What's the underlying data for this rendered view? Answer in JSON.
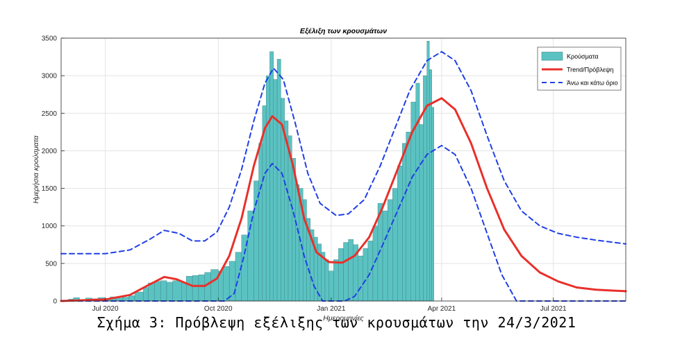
{
  "caption": "Σχήμα 3: Πρόβλεψη εξέλιξης των κρουσμάτων την 24/3/2021",
  "chart_data": {
    "type": "bar+line",
    "title": "Εξέλιξη των κρουσμάτων",
    "xlabel": "Ημερομηνίες",
    "ylabel": "Ημερήσια κρούσματα",
    "ylim": [
      0,
      3500
    ],
    "yticks": [
      0,
      500,
      1000,
      1500,
      2000,
      2500,
      3000,
      3500
    ],
    "xlim": [
      "2020-05-26",
      "2021-08-29"
    ],
    "xticks": [
      {
        "date": "2020-07-01",
        "label": "Jul 2020"
      },
      {
        "date": "2020-10-01",
        "label": "Oct 2020"
      },
      {
        "date": "2021-01-01",
        "label": "Jan 2021"
      },
      {
        "date": "2021-04-01",
        "label": "Apr 2021"
      },
      {
        "date": "2021-07-01",
        "label": "Jul 2021"
      }
    ],
    "grid": true,
    "legend_position": "top-right",
    "colors": {
      "bars": "#5bc2c2",
      "trend": "#e8302a",
      "bounds": "#1f3fe6"
    },
    "series": [
      {
        "name": "Κρούσματα",
        "kind": "bar",
        "points": [
          {
            "x": "2020-05-26",
            "y": 10
          },
          {
            "x": "2020-06-01",
            "y": 25
          },
          {
            "x": "2020-06-05",
            "y": 45
          },
          {
            "x": "2020-06-10",
            "y": 20
          },
          {
            "x": "2020-06-15",
            "y": 40
          },
          {
            "x": "2020-06-20",
            "y": 30
          },
          {
            "x": "2020-06-25",
            "y": 45
          },
          {
            "x": "2020-07-01",
            "y": 30
          },
          {
            "x": "2020-07-05",
            "y": 55
          },
          {
            "x": "2020-07-10",
            "y": 40
          },
          {
            "x": "2020-07-15",
            "y": 50
          },
          {
            "x": "2020-07-20",
            "y": 70
          },
          {
            "x": "2020-07-25",
            "y": 120
          },
          {
            "x": "2020-08-01",
            "y": 180
          },
          {
            "x": "2020-08-05",
            "y": 240
          },
          {
            "x": "2020-08-10",
            "y": 260
          },
          {
            "x": "2020-08-15",
            "y": 270
          },
          {
            "x": "2020-08-20",
            "y": 250
          },
          {
            "x": "2020-08-25",
            "y": 270
          },
          {
            "x": "2020-09-01",
            "y": 240
          },
          {
            "x": "2020-09-05",
            "y": 330
          },
          {
            "x": "2020-09-10",
            "y": 340
          },
          {
            "x": "2020-09-15",
            "y": 350
          },
          {
            "x": "2020-09-20",
            "y": 380
          },
          {
            "x": "2020-09-25",
            "y": 420
          },
          {
            "x": "2020-10-01",
            "y": 400
          },
          {
            "x": "2020-10-05",
            "y": 460
          },
          {
            "x": "2020-10-10",
            "y": 530
          },
          {
            "x": "2020-10-15",
            "y": 650
          },
          {
            "x": "2020-10-20",
            "y": 880
          },
          {
            "x": "2020-10-25",
            "y": 1200
          },
          {
            "x": "2020-10-30",
            "y": 1600
          },
          {
            "x": "2020-11-03",
            "y": 2100
          },
          {
            "x": "2020-11-06",
            "y": 2600
          },
          {
            "x": "2020-11-09",
            "y": 3000
          },
          {
            "x": "2020-11-12",
            "y": 3320
          },
          {
            "x": "2020-11-15",
            "y": 2950
          },
          {
            "x": "2020-11-18",
            "y": 3220
          },
          {
            "x": "2020-11-21",
            "y": 2700
          },
          {
            "x": "2020-11-24",
            "y": 2400
          },
          {
            "x": "2020-11-27",
            "y": 2200
          },
          {
            "x": "2020-11-30",
            "y": 1900
          },
          {
            "x": "2020-12-03",
            "y": 1550
          },
          {
            "x": "2020-12-06",
            "y": 1500
          },
          {
            "x": "2020-12-09",
            "y": 1350
          },
          {
            "x": "2020-12-12",
            "y": 1100
          },
          {
            "x": "2020-12-15",
            "y": 950
          },
          {
            "x": "2020-12-18",
            "y": 850
          },
          {
            "x": "2020-12-21",
            "y": 760
          },
          {
            "x": "2020-12-24",
            "y": 650
          },
          {
            "x": "2020-12-27",
            "y": 550
          },
          {
            "x": "2020-12-30",
            "y": 400
          },
          {
            "x": "2021-01-03",
            "y": 550
          },
          {
            "x": "2021-01-07",
            "y": 700
          },
          {
            "x": "2021-01-11",
            "y": 780
          },
          {
            "x": "2021-01-15",
            "y": 820
          },
          {
            "x": "2021-01-19",
            "y": 750
          },
          {
            "x": "2021-01-23",
            "y": 600
          },
          {
            "x": "2021-01-27",
            "y": 700
          },
          {
            "x": "2021-01-31",
            "y": 800
          },
          {
            "x": "2021-02-04",
            "y": 1000
          },
          {
            "x": "2021-02-08",
            "y": 1300
          },
          {
            "x": "2021-02-12",
            "y": 1200
          },
          {
            "x": "2021-02-16",
            "y": 1350
          },
          {
            "x": "2021-02-20",
            "y": 1500
          },
          {
            "x": "2021-02-24",
            "y": 1800
          },
          {
            "x": "2021-02-28",
            "y": 2100
          },
          {
            "x": "2021-03-03",
            "y": 2250
          },
          {
            "x": "2021-03-07",
            "y": 2650
          },
          {
            "x": "2021-03-11",
            "y": 2900
          },
          {
            "x": "2021-03-14",
            "y": 2350
          },
          {
            "x": "2021-03-17",
            "y": 3000
          },
          {
            "x": "2021-03-20",
            "y": 3460
          },
          {
            "x": "2021-03-22",
            "y": 3080
          },
          {
            "x": "2021-03-24",
            "y": 2580
          }
        ]
      },
      {
        "name": "Trend/Πρόβλεψη",
        "kind": "line",
        "points": [
          {
            "x": "2020-05-26",
            "y": 0
          },
          {
            "x": "2020-07-01",
            "y": 20
          },
          {
            "x": "2020-07-21",
            "y": 80
          },
          {
            "x": "2020-08-06",
            "y": 220
          },
          {
            "x": "2020-08-18",
            "y": 320
          },
          {
            "x": "2020-08-28",
            "y": 290
          },
          {
            "x": "2020-09-10",
            "y": 200
          },
          {
            "x": "2020-09-20",
            "y": 200
          },
          {
            "x": "2020-09-30",
            "y": 300
          },
          {
            "x": "2020-10-10",
            "y": 600
          },
          {
            "x": "2020-10-20",
            "y": 1100
          },
          {
            "x": "2020-10-30",
            "y": 1800
          },
          {
            "x": "2020-11-08",
            "y": 2300
          },
          {
            "x": "2020-11-14",
            "y": 2460
          },
          {
            "x": "2020-11-22",
            "y": 2350
          },
          {
            "x": "2020-12-01",
            "y": 1800
          },
          {
            "x": "2020-12-10",
            "y": 1100
          },
          {
            "x": "2020-12-20",
            "y": 650
          },
          {
            "x": "2020-12-30",
            "y": 520
          },
          {
            "x": "2021-01-10",
            "y": 510
          },
          {
            "x": "2021-01-20",
            "y": 600
          },
          {
            "x": "2021-02-01",
            "y": 850
          },
          {
            "x": "2021-02-12",
            "y": 1250
          },
          {
            "x": "2021-02-24",
            "y": 1750
          },
          {
            "x": "2021-03-08",
            "y": 2250
          },
          {
            "x": "2021-03-20",
            "y": 2600
          },
          {
            "x": "2021-04-01",
            "y": 2700
          },
          {
            "x": "2021-04-12",
            "y": 2550
          },
          {
            "x": "2021-04-25",
            "y": 2100
          },
          {
            "x": "2021-05-08",
            "y": 1500
          },
          {
            "x": "2021-05-22",
            "y": 950
          },
          {
            "x": "2021-06-05",
            "y": 600
          },
          {
            "x": "2021-06-20",
            "y": 380
          },
          {
            "x": "2021-07-05",
            "y": 260
          },
          {
            "x": "2021-07-20",
            "y": 180
          },
          {
            "x": "2021-08-05",
            "y": 150
          },
          {
            "x": "2021-08-29",
            "y": 130
          }
        ]
      },
      {
        "name": "Άνω και κάτω όριο",
        "kind": "dashed",
        "points": [
          {
            "x": "2020-05-26",
            "y": 630
          },
          {
            "x": "2020-07-01",
            "y": 630
          },
          {
            "x": "2020-07-21",
            "y": 680
          },
          {
            "x": "2020-08-06",
            "y": 820
          },
          {
            "x": "2020-08-18",
            "y": 940
          },
          {
            "x": "2020-08-30",
            "y": 900
          },
          {
            "x": "2020-09-10",
            "y": 800
          },
          {
            "x": "2020-09-20",
            "y": 800
          },
          {
            "x": "2020-09-30",
            "y": 920
          },
          {
            "x": "2020-10-10",
            "y": 1250
          },
          {
            "x": "2020-10-20",
            "y": 1750
          },
          {
            "x": "2020-10-30",
            "y": 2400
          },
          {
            "x": "2020-11-08",
            "y": 2900
          },
          {
            "x": "2020-11-15",
            "y": 3100
          },
          {
            "x": "2020-11-23",
            "y": 2950
          },
          {
            "x": "2020-12-03",
            "y": 2350
          },
          {
            "x": "2020-12-13",
            "y": 1700
          },
          {
            "x": "2020-12-23",
            "y": 1300
          },
          {
            "x": "2021-01-05",
            "y": 1140
          },
          {
            "x": "2021-01-15",
            "y": 1160
          },
          {
            "x": "2021-01-28",
            "y": 1350
          },
          {
            "x": "2021-02-10",
            "y": 1800
          },
          {
            "x": "2021-02-22",
            "y": 2300
          },
          {
            "x": "2021-03-06",
            "y": 2800
          },
          {
            "x": "2021-03-20",
            "y": 3200
          },
          {
            "x": "2021-04-01",
            "y": 3320
          },
          {
            "x": "2021-04-12",
            "y": 3200
          },
          {
            "x": "2021-04-25",
            "y": 2800
          },
          {
            "x": "2021-05-08",
            "y": 2200
          },
          {
            "x": "2021-05-22",
            "y": 1600
          },
          {
            "x": "2021-06-05",
            "y": 1200
          },
          {
            "x": "2021-06-20",
            "y": 1000
          },
          {
            "x": "2021-07-05",
            "y": 900
          },
          {
            "x": "2021-07-20",
            "y": 850
          },
          {
            "x": "2021-08-05",
            "y": 810
          },
          {
            "x": "2021-08-29",
            "y": 760
          }
        ]
      },
      {
        "name": "",
        "kind": "dashed",
        "points": [
          {
            "x": "2020-05-26",
            "y": 0
          },
          {
            "x": "2020-10-06",
            "y": 0
          },
          {
            "x": "2020-10-14",
            "y": 100
          },
          {
            "x": "2020-10-22",
            "y": 600
          },
          {
            "x": "2020-10-30",
            "y": 1200
          },
          {
            "x": "2020-11-08",
            "y": 1700
          },
          {
            "x": "2020-11-14",
            "y": 1830
          },
          {
            "x": "2020-11-22",
            "y": 1700
          },
          {
            "x": "2020-12-01",
            "y": 1200
          },
          {
            "x": "2020-12-10",
            "y": 600
          },
          {
            "x": "2020-12-18",
            "y": 200
          },
          {
            "x": "2020-12-25",
            "y": 0
          },
          {
            "x": "2021-01-12",
            "y": 0
          },
          {
            "x": "2021-01-20",
            "y": 60
          },
          {
            "x": "2021-02-01",
            "y": 350
          },
          {
            "x": "2021-02-12",
            "y": 750
          },
          {
            "x": "2021-02-24",
            "y": 1200
          },
          {
            "x": "2021-03-08",
            "y": 1650
          },
          {
            "x": "2021-03-20",
            "y": 1950
          },
          {
            "x": "2021-04-01",
            "y": 2070
          },
          {
            "x": "2021-04-12",
            "y": 1950
          },
          {
            "x": "2021-04-25",
            "y": 1500
          },
          {
            "x": "2021-05-08",
            "y": 900
          },
          {
            "x": "2021-05-20",
            "y": 350
          },
          {
            "x": "2021-06-01",
            "y": 0
          },
          {
            "x": "2021-08-29",
            "y": 0
          }
        ]
      }
    ]
  }
}
